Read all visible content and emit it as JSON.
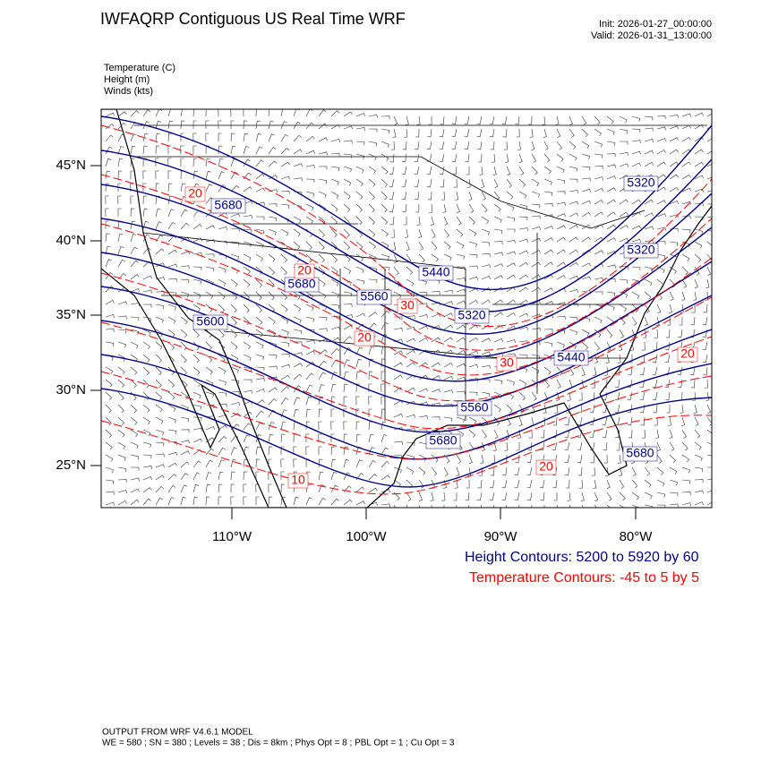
{
  "header": {
    "title": "IWFAQRP Contiguous US Real Time WRF",
    "init": "Init: 2026-01-27_00:00:00",
    "valid": "Valid: 2026-01-31_13:00:00"
  },
  "fields": [
    "Temperature   (C)",
    "Height   (m)",
    "Winds   (kts)"
  ],
  "map": {
    "lat_labels": [
      "45°N",
      "40°N",
      "35°N",
      "30°N",
      "25°N"
    ],
    "lon_labels": [
      "110°W",
      "100°W",
      "90°W",
      "80°W"
    ],
    "height_labels": [
      "5680",
      "5680",
      "5600",
      "5560",
      "5440",
      "5320",
      "5320",
      "5320",
      "5440",
      "5560",
      "5680",
      "5680"
    ],
    "temperature_labels": [
      "20",
      "20",
      "30",
      "20",
      "30",
      "20",
      "20",
      "10"
    ]
  },
  "legend": {
    "height": "Height Contours: 5200 to 5920 by 60",
    "temperature": "Temperature Contours: -45 to 5 by 5"
  },
  "footer": {
    "model": "OUTPUT FROM WRF V4.6.1 MODEL",
    "options": "WE = 580 ; SN = 380 ; Levels = 38 ; Dis = 8km ; Phys Opt = 8 ; PBL Opt = 1 ; Cu Opt = 3"
  }
}
